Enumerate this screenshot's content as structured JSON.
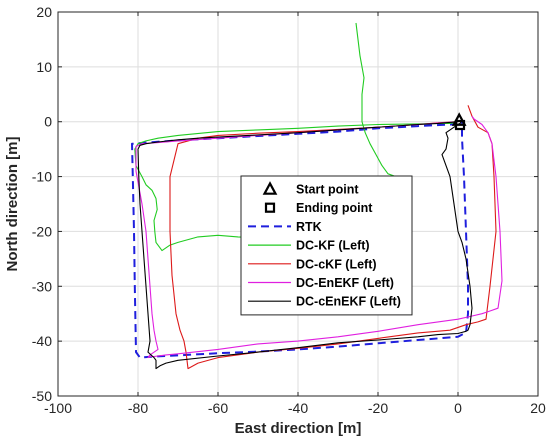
{
  "chart_data": {
    "type": "line",
    "xlabel": "East direction [m]",
    "ylabel": "North direction [m]",
    "xlim": [
      -100,
      20
    ],
    "ylim": [
      -50,
      20
    ],
    "xticks": [
      -100,
      -80,
      -60,
      -40,
      -20,
      0,
      20
    ],
    "yticks": [
      -50,
      -40,
      -30,
      -20,
      -10,
      0,
      10,
      20
    ],
    "grid": true,
    "legend_position": "center",
    "markers": [
      {
        "name": "Start point",
        "shape": "triangle",
        "x": 0.3,
        "y": 0.3
      },
      {
        "name": "Ending point",
        "shape": "square",
        "x": 0.5,
        "y": -0.6
      }
    ],
    "series": [
      {
        "name": "RTK",
        "color": "#1f1fdd",
        "style": "dashed",
        "x": [
          0,
          -2,
          -10,
          -20,
          -30,
          -40,
          -50,
          -60,
          -70,
          -78,
          -81,
          -81.5,
          -81.3,
          -81,
          -80.8,
          -80.6,
          -80.5,
          -79.5,
          -76,
          -70,
          -60,
          -50,
          -40,
          -30,
          -20,
          -10,
          0,
          1,
          2,
          2.5,
          2.5,
          2,
          1.5,
          1,
          1,
          1
        ],
        "y": [
          -0.5,
          -0.5,
          -0.8,
          -1.2,
          -1.8,
          -2.2,
          -2.6,
          -3,
          -3.4,
          -3.8,
          -4,
          -4,
          -10,
          -20,
          -30,
          -38,
          -42,
          -43,
          -42.8,
          -42.6,
          -42.2,
          -41.9,
          -41.5,
          -41,
          -40.4,
          -39.8,
          -39.2,
          -38.8,
          -38.5,
          -35,
          -30,
          -20,
          -10,
          -3,
          -1,
          0
        ]
      },
      {
        "name": "DC-KF (Left)",
        "color": "#22cc22",
        "style": "solid",
        "x": [
          -25.5,
          -24.5,
          -23.5,
          -24,
          -24,
          -23.2,
          -22,
          -20.5,
          -19,
          -17.5,
          -15.5,
          -15,
          -16,
          -17,
          -17.8,
          -19,
          -21,
          -23,
          -25.5,
          -27,
          -30,
          -35,
          -40,
          -45,
          -50,
          -55,
          -60,
          -65,
          -70,
          -72,
          -74,
          -75.5,
          -75.8,
          -76,
          -75.2,
          -75.5,
          -76.5,
          -78,
          -79,
          -80.5,
          -80.8,
          -80,
          -78,
          -75,
          -70,
          -60,
          -50,
          -40,
          -30,
          -20,
          -10,
          -5,
          -2,
          0
        ],
        "y": [
          18,
          12,
          8,
          5,
          0,
          -2,
          -4,
          -6,
          -8,
          -9.5,
          -10,
          -12,
          -14,
          -16,
          -17.5,
          -18.5,
          -19,
          -19.5,
          -19.8,
          -19.2,
          -19.5,
          -20,
          -20.2,
          -20.8,
          -21.2,
          -21,
          -20.7,
          -21,
          -22,
          -22.5,
          -23.5,
          -22,
          -20,
          -18,
          -16,
          -14,
          -12.5,
          -11.5,
          -10,
          -8,
          -5,
          -4,
          -3.5,
          -3,
          -2.5,
          -1.8,
          -1.5,
          -1.2,
          -0.8,
          -0.5,
          -0.4,
          -0.3,
          -0.3,
          0
        ]
      },
      {
        "name": "DC-cKF (Left)",
        "color": "#dd1a1a",
        "style": "solid",
        "x": [
          0,
          -5,
          -10,
          -20,
          -30,
          -40,
          -50,
          -60,
          -65,
          -70,
          -72,
          -72,
          -71.5,
          -70.5,
          -69.5,
          -68.5,
          -68,
          -67.5,
          -65,
          -60,
          -50,
          -40,
          -30,
          -20,
          -10,
          -2,
          2,
          5,
          7,
          8,
          9.5,
          9,
          8.5,
          7.5,
          5,
          3.5,
          2.5
        ],
        "y": [
          0,
          -0.2,
          -0.5,
          -1,
          -1.4,
          -1.8,
          -2.1,
          -2.5,
          -3,
          -4,
          -10,
          -20,
          -28,
          -35,
          -38,
          -40,
          -42,
          -45,
          -44,
          -43,
          -42,
          -41.3,
          -40.5,
          -39.5,
          -38.5,
          -38,
          -37,
          -36.5,
          -36,
          -30,
          -20,
          -10,
          -4,
          -2,
          -1,
          1,
          3
        ]
      },
      {
        "name": "DC-EnEKF (Left)",
        "color": "#e020e0",
        "style": "solid",
        "x": [
          0,
          -10,
          -20,
          -30,
          -40,
          -50,
          -60,
          -70,
          -75,
          -79,
          -80.5,
          -80.5,
          -79,
          -78,
          -77.5,
          -77,
          -76.5,
          -76,
          -75.5,
          -75,
          -77,
          -77.5,
          -77,
          -76,
          -73,
          -70,
          -60,
          -50,
          -40,
          -30,
          -20,
          -10,
          0,
          3,
          6,
          8,
          10,
          11,
          10.5,
          9.5,
          8.5,
          7.5,
          6,
          4,
          3.5
        ],
        "y": [
          0,
          -0.5,
          -1,
          -1.5,
          -2,
          -2.5,
          -3,
          -3.5,
          -3.8,
          -4,
          -4.5,
          -9,
          -15,
          -20,
          -25,
          -30,
          -35,
          -38,
          -40,
          -41.5,
          -42.5,
          -43,
          -42.8,
          -42.8,
          -42.5,
          -42.3,
          -41.5,
          -40.5,
          -40,
          -39.2,
          -38.2,
          -37,
          -36,
          -35.5,
          -35,
          -34.5,
          -34,
          -29,
          -20,
          -10,
          -4,
          -2,
          -0.5,
          0.5,
          1
        ]
      },
      {
        "name": "DC-cEnEKF (Left)",
        "color": "#000000",
        "style": "solid",
        "x": [
          0,
          -5,
          -10,
          -20,
          -30,
          -40,
          -50,
          -60,
          -65,
          -70,
          -75,
          -78,
          -79.5,
          -80,
          -79.8,
          -79.5,
          -79,
          -78.5,
          -78,
          -77.5,
          -77,
          -77.5,
          -76,
          -75.5,
          -75.5,
          -74.5,
          -73,
          -70,
          -60,
          -50,
          -40,
          -30,
          -20,
          -10,
          -5,
          0,
          1,
          2,
          2.5,
          3,
          3.5,
          3,
          2,
          1,
          0,
          -1,
          -2,
          -3,
          -4,
          -3,
          -2.5,
          -3,
          -2,
          -1,
          0,
          0.5,
          0.8
        ],
        "y": [
          0,
          -0.3,
          -0.5,
          -1,
          -1.5,
          -2,
          -2.4,
          -2.8,
          -3,
          -3.3,
          -3.7,
          -4,
          -4.3,
          -5,
          -10,
          -15,
          -20,
          -25,
          -30,
          -35,
          -40,
          -42,
          -43,
          -43.5,
          -45,
          -44.5,
          -44,
          -43.5,
          -42.7,
          -42,
          -41.2,
          -40.3,
          -39.8,
          -39.2,
          -38.8,
          -38.6,
          -38.4,
          -38.2,
          -38,
          -37,
          -34,
          -30,
          -25,
          -22,
          -20,
          -15,
          -10,
          -8,
          -6,
          -5,
          -3,
          -2,
          -1.5,
          -1,
          -0.5,
          -0.3,
          0
        ]
      }
    ]
  }
}
